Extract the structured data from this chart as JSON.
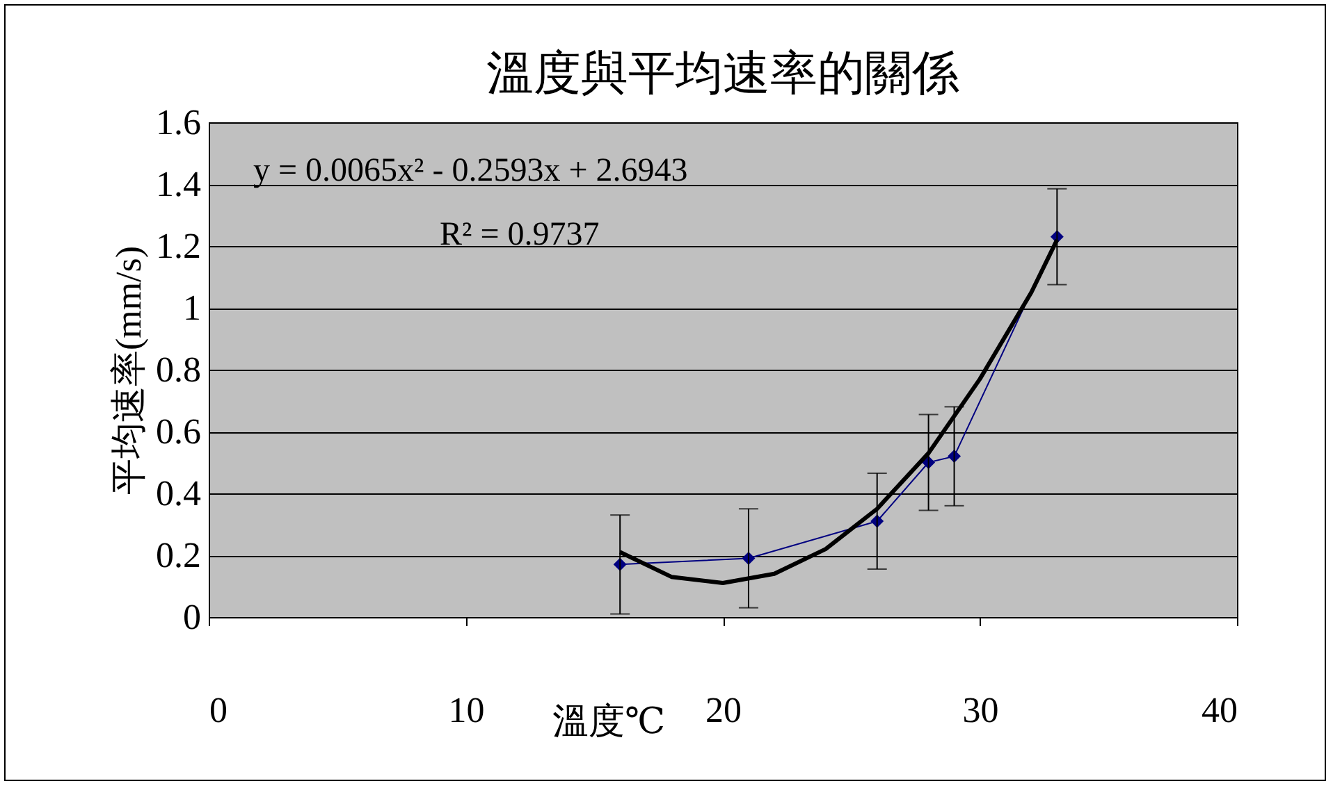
{
  "chart_data": {
    "type": "line",
    "title": "溫度與平均速率的關係",
    "xlabel": "溫度℃",
    "ylabel": "平均速率(mm/s)",
    "x": [
      16,
      21,
      26,
      28,
      29,
      33
    ],
    "series": [
      {
        "color": "#000080",
        "values": [
          0.17,
          0.19,
          0.31,
          0.5,
          0.52,
          1.23
        ],
        "errors": [
          0.16,
          0.16,
          0.155,
          0.155,
          0.16,
          0.155
        ],
        "marker": "diamond",
        "line_style": "solid"
      },
      {
        "type": "line",
        "color": "#000000",
        "x": [
          16,
          18,
          20,
          22,
          24,
          26,
          28,
          30,
          32,
          33
        ],
        "values": [
          0.21,
          0.13,
          0.11,
          0.14,
          0.22,
          0.35,
          0.53,
          0.77,
          1.05,
          1.22
        ],
        "marker": "none",
        "line_style": "solid"
      }
    ],
    "xlim": [
      0,
      40
    ],
    "xticks": [
      0,
      10,
      20,
      30,
      40
    ],
    "ylim": [
      0,
      1.6
    ],
    "yticks": [
      0,
      0.2,
      0.4,
      0.6,
      0.8,
      1,
      1.2,
      1.4,
      1.6
    ],
    "grid": "y",
    "annotations": [
      "y = 0.0065x² - 0.2593x + 2.6943",
      "R² = 0.9737"
    ]
  }
}
